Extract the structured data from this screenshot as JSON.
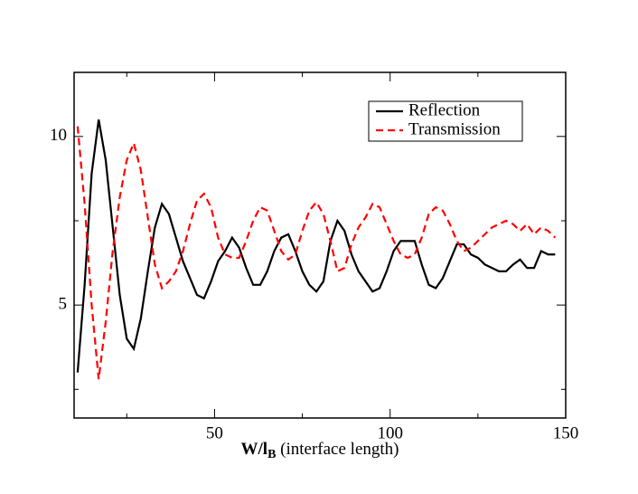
{
  "chart_data": {
    "type": "line",
    "xlabel_main": "W/l",
    "xlabel_sub": "B",
    "xlabel_rest": " (interface length)",
    "x": [
      11,
      13,
      15,
      17,
      19,
      21,
      23,
      25,
      27,
      29,
      31,
      33,
      35,
      37,
      39,
      41,
      43,
      45,
      47,
      49,
      51,
      53,
      55,
      57,
      59,
      61,
      63,
      65,
      67,
      69,
      71,
      73,
      75,
      77,
      79,
      81,
      83,
      85,
      87,
      89,
      91,
      93,
      95,
      97,
      99,
      101,
      103,
      105,
      107,
      109,
      111,
      113,
      115,
      117,
      119,
      121,
      123,
      125,
      127,
      129,
      131,
      133,
      135,
      137,
      139,
      141,
      143,
      145,
      147
    ],
    "series": [
      {
        "name": "Reflection",
        "color": "#000000",
        "dash": false,
        "values": [
          3.0,
          5.6,
          8.9,
          10.5,
          9.3,
          7.3,
          5.3,
          4.0,
          3.7,
          4.6,
          6.0,
          7.3,
          8.0,
          7.7,
          7.0,
          6.3,
          5.8,
          5.3,
          5.2,
          5.7,
          6.3,
          6.6,
          7.0,
          6.7,
          6.1,
          5.6,
          5.6,
          6.0,
          6.6,
          7.0,
          7.1,
          6.6,
          6.0,
          5.6,
          5.4,
          5.7,
          6.9,
          7.5,
          7.2,
          6.5,
          6.0,
          5.7,
          5.4,
          5.5,
          6.0,
          6.6,
          6.9,
          6.9,
          6.9,
          6.2,
          5.6,
          5.5,
          5.8,
          6.3,
          6.8,
          6.8,
          6.5,
          6.4,
          6.2,
          6.1,
          6.0,
          6.0,
          6.2,
          6.35,
          6.1,
          6.1,
          6.6,
          6.5,
          6.5
        ]
      },
      {
        "name": "Transmission",
        "color": "#ff0000",
        "dash": true,
        "values": [
          10.3,
          8.0,
          5.0,
          2.8,
          4.5,
          6.6,
          8.2,
          9.3,
          9.8,
          9.0,
          7.6,
          6.2,
          5.5,
          5.7,
          6.0,
          6.6,
          7.4,
          8.1,
          8.3,
          7.9,
          7.0,
          6.5,
          6.4,
          6.4,
          6.9,
          7.5,
          7.9,
          7.8,
          7.2,
          6.6,
          6.35,
          6.5,
          7.2,
          7.8,
          8.05,
          7.7,
          6.9,
          6.0,
          6.1,
          6.8,
          7.3,
          7.6,
          8.0,
          7.9,
          7.4,
          6.9,
          6.5,
          6.4,
          6.5,
          7.0,
          7.7,
          7.9,
          7.8,
          7.4,
          6.9,
          6.6,
          6.7,
          6.9,
          7.1,
          7.3,
          7.4,
          7.5,
          7.4,
          7.2,
          7.4,
          7.1,
          7.3,
          7.2,
          7.0
        ]
      }
    ],
    "xlim": [
      10,
      150
    ],
    "xticks": [
      50,
      100,
      150
    ],
    "xminor": [
      25,
      75,
      125
    ],
    "ylim": [
      1.65,
      11.9
    ],
    "yticks": [
      5,
      10
    ],
    "yminor": [
      2.5,
      7.5
    ],
    "legend": "upper right",
    "grid": false
  }
}
